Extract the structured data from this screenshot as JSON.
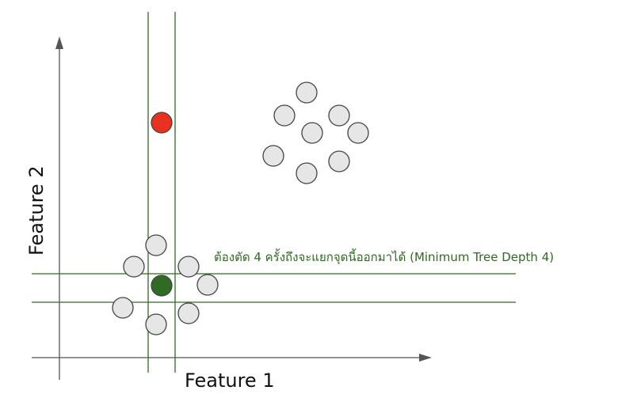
{
  "axes": {
    "x_label": "Feature 1",
    "y_label": "Feature 2"
  },
  "annotation": {
    "text": "ต้องตัด 4 ครั้งถึงจะแยกจุดนี้ออกมาได้ (Minimum Tree Depth 4)"
  },
  "colors": {
    "axis": "#555555",
    "split_line": "#2e6b1f",
    "annotation": "#2e6b1f",
    "point_default_fill": "#e6e6e6",
    "point_outline": "#444444",
    "anomaly_fill": "#e8311f",
    "target_fill": "#2f6b23"
  },
  "points": {
    "normal_cluster_count": 8,
    "far_cluster_count": 8,
    "anomaly_marker": "red-point",
    "target_marker": "green-point"
  }
}
